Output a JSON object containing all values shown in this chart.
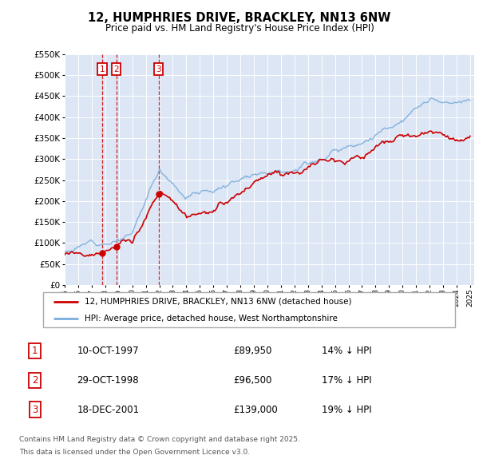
{
  "title": "12, HUMPHRIES DRIVE, BRACKLEY, NN13 6NW",
  "subtitle": "Price paid vs. HM Land Registry's House Price Index (HPI)",
  "legend_label_red": "12, HUMPHRIES DRIVE, BRACKLEY, NN13 6NW (detached house)",
  "legend_label_blue": "HPI: Average price, detached house, West Northamptonshire",
  "footer_line1": "Contains HM Land Registry data © Crown copyright and database right 2025.",
  "footer_line2": "This data is licensed under the Open Government Licence v3.0.",
  "transactions": [
    {
      "num": 1,
      "date": "10-OCT-1997",
      "price": 89950,
      "pct": "14% ↓ HPI",
      "year": 1997.78
    },
    {
      "num": 2,
      "date": "29-OCT-1998",
      "price": 96500,
      "pct": "17% ↓ HPI",
      "year": 1998.83
    },
    {
      "num": 3,
      "date": "18-DEC-2001",
      "price": 139000,
      "pct": "19% ↓ HPI",
      "year": 2001.96
    }
  ],
  "ylim": [
    0,
    550000
  ],
  "yticks": [
    0,
    50000,
    100000,
    150000,
    200000,
    250000,
    300000,
    350000,
    400000,
    450000,
    500000,
    550000
  ],
  "xlim_start": 1995,
  "xlim_end": 2025.3,
  "background_color": "#dce6f5",
  "plot_bg_color": "#dce6f5",
  "red_color": "#cc0000",
  "blue_color": "#7aacdc",
  "vline_color": "#cc0000",
  "box_color": "#cc0000",
  "grid_color": "#ffffff"
}
